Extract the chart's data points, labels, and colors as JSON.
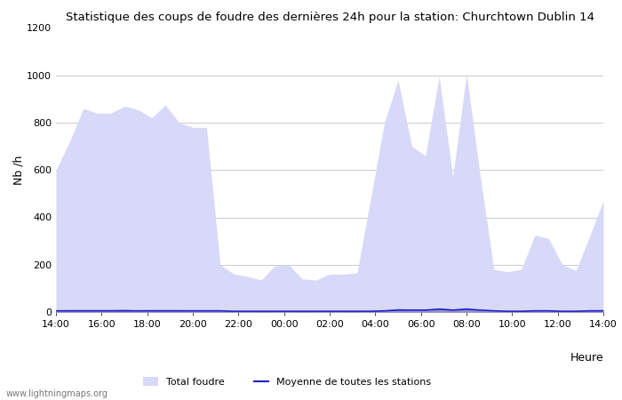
{
  "title": "Statistique des coups de foudre des dernières 24h pour la station: Churchtown Dublin 14",
  "ylabel": "Nb /h",
  "xlabel": "Heure",
  "watermark": "www.lightningmaps.org",
  "ylim": [
    0,
    1200
  ],
  "yticks": [
    0,
    200,
    400,
    600,
    800,
    1000,
    1200
  ],
  "xtick_labels": [
    "14:00",
    "16:00",
    "18:00",
    "20:00",
    "22:00",
    "00:00",
    "02:00",
    "04:00",
    "06:00",
    "08:00",
    "10:00",
    "12:00",
    "14:00"
  ],
  "color_total": "#d8d8f8",
  "color_local": "#9090cc",
  "color_avg_line": "#2222cc",
  "bg_color": "#ffffff",
  "grid_color": "#cccccc",
  "total_foudre": [
    600,
    720,
    860,
    840,
    840,
    870,
    855,
    820,
    875,
    800,
    780,
    780,
    200,
    160,
    150,
    135,
    195,
    200,
    140,
    135,
    160,
    160,
    165,
    480,
    800,
    980,
    700,
    660,
    995,
    570,
    1005,
    575,
    180,
    170,
    180,
    325,
    310,
    200,
    175,
    320,
    470
  ],
  "local_foudre": [
    8,
    10,
    10,
    10,
    10,
    12,
    8,
    10,
    10,
    10,
    8,
    8,
    5,
    4,
    4,
    4,
    5,
    5,
    4,
    4,
    4,
    5,
    5,
    5,
    8,
    15,
    12,
    10,
    18,
    12,
    18,
    10,
    5,
    4,
    5,
    8,
    8,
    5,
    5,
    8,
    10
  ],
  "avg_line": [
    5,
    5,
    5,
    5,
    5,
    5,
    5,
    5,
    5,
    5,
    5,
    5,
    5,
    3,
    3,
    3,
    3,
    3,
    3,
    3,
    3,
    3,
    3,
    3,
    5,
    8,
    8,
    8,
    12,
    8,
    12,
    8,
    5,
    3,
    3,
    5,
    5,
    3,
    3,
    5,
    5
  ],
  "n_points": 41
}
